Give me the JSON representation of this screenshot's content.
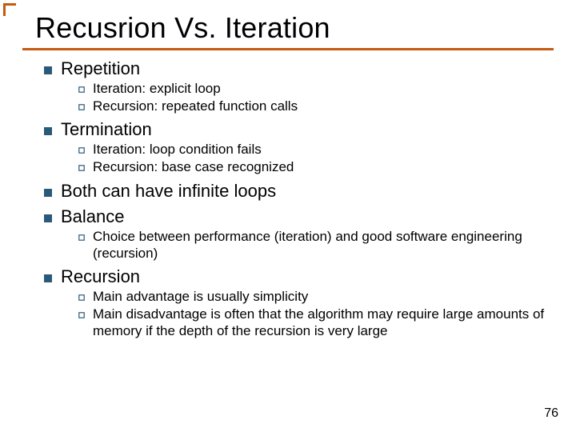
{
  "title": "Recusrion Vs. Iteration",
  "page_number": "76",
  "colors": {
    "accent": "#c55a11",
    "l1_bullet_fill": "#2a5a7a",
    "l2_bullet_stroke": "#2a5a7a",
    "text": "#000000",
    "background": "#ffffff"
  },
  "typography": {
    "title_fontsize": 36,
    "l1_fontsize": 22,
    "l2_fontsize": 17
  },
  "items": [
    {
      "label": "Repetition",
      "sub": [
        "Iteration:  explicit loop",
        "Recursion:  repeated function calls"
      ]
    },
    {
      "label": "Termination",
      "sub": [
        "Iteration: loop condition fails",
        "Recursion: base case recognized"
      ]
    },
    {
      "label": "Both can have infinite loops",
      "sub": []
    },
    {
      "label": "Balance",
      "sub": [
        "Choice between performance (iteration) and good software engineering (recursion)"
      ]
    },
    {
      "label": "Recursion",
      "sub": [
        "Main advantage is usually simplicity",
        "Main disadvantage is often that the algorithm may require large amounts of memory if the depth of the recursion is very large"
      ]
    }
  ]
}
